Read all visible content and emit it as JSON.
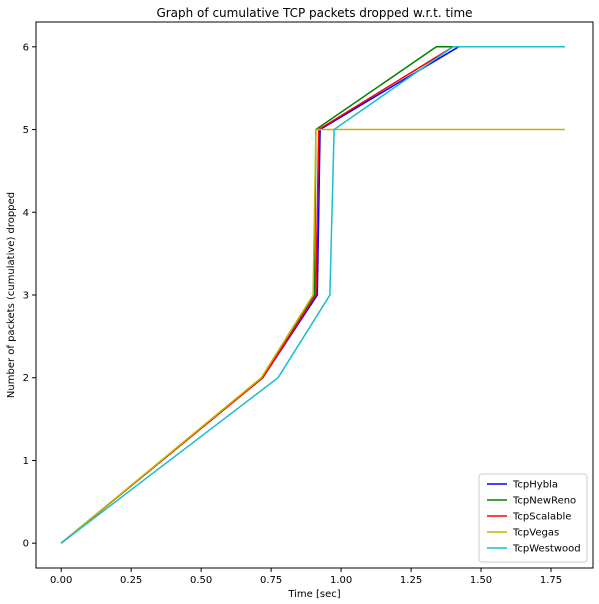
{
  "chart_data": {
    "type": "line",
    "title": "Graph of cumulative TCP packets dropped w.r.t. time",
    "xlabel": "Time [sec]",
    "ylabel": "Number of packets (cumulative) dropped",
    "xlim": [
      -0.09,
      1.9
    ],
    "ylim": [
      -0.3,
      6.3
    ],
    "xticks": [
      0.0,
      0.25,
      0.5,
      0.75,
      1.0,
      1.25,
      1.5,
      1.75
    ],
    "xtick_labels": [
      "0.00",
      "0.25",
      "0.50",
      "0.75",
      "1.00",
      "1.25",
      "1.50",
      "1.75"
    ],
    "yticks": [
      0,
      1,
      2,
      3,
      4,
      5,
      6
    ],
    "ytick_labels": [
      "0",
      "1",
      "2",
      "3",
      "4",
      "5",
      "6"
    ],
    "grid": false,
    "legend_position": "bottom-right",
    "series": [
      {
        "name": "TcpHybla",
        "color": "#0000ff",
        "points": [
          [
            0.0,
            0
          ],
          [
            0.72,
            2
          ],
          [
            0.915,
            3
          ],
          [
            0.925,
            5
          ],
          [
            1.42,
            6
          ],
          [
            1.8,
            6
          ]
        ]
      },
      {
        "name": "TcpNewReno",
        "color": "#008000",
        "points": [
          [
            0.0,
            0
          ],
          [
            0.72,
            2
          ],
          [
            0.905,
            3
          ],
          [
            0.91,
            5
          ],
          [
            1.34,
            6
          ],
          [
            1.8,
            6
          ]
        ]
      },
      {
        "name": "TcpScalable",
        "color": "#ff0000",
        "points": [
          [
            0.0,
            0
          ],
          [
            0.72,
            2
          ],
          [
            0.91,
            3
          ],
          [
            0.92,
            5
          ],
          [
            1.4,
            6
          ],
          [
            1.8,
            6
          ]
        ]
      },
      {
        "name": "TcpVegas",
        "color": "#c8b400",
        "points": [
          [
            0.0,
            0
          ],
          [
            0.715,
            2
          ],
          [
            0.9,
            3
          ],
          [
            0.91,
            5
          ],
          [
            1.8,
            5
          ]
        ]
      },
      {
        "name": "TcpWestwood",
        "color": "#17becf",
        "points": [
          [
            0.0,
            0
          ],
          [
            0.775,
            2
          ],
          [
            0.96,
            3
          ],
          [
            0.975,
            5
          ],
          [
            1.4,
            6
          ],
          [
            1.8,
            6
          ]
        ]
      }
    ]
  }
}
